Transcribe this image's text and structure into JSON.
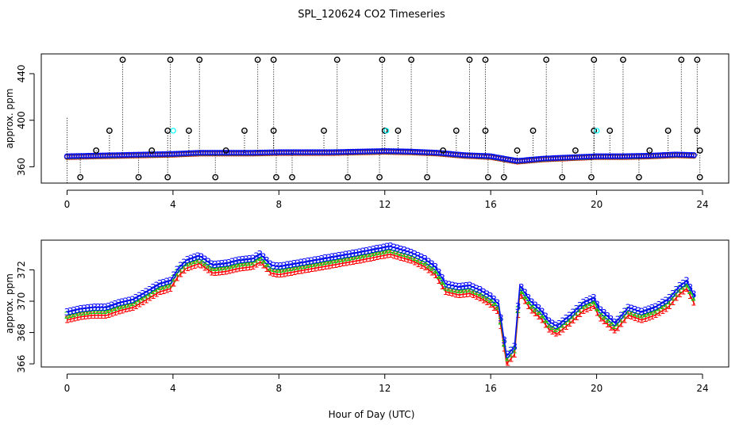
{
  "figure": {
    "title": "SPL_120624  CO2 Timeseries",
    "xlabel": "Hour of Day (UTC)"
  },
  "colors": {
    "series_1": "#ff0000",
    "series_2": "#00cd00",
    "series_3": "#0000ff",
    "cyan": "#00ffff",
    "outlier": "#000000",
    "axis": "#000000"
  },
  "chart_data": [
    {
      "type": "scatter",
      "title": "",
      "xlabel": "",
      "ylabel": "approx. ppm",
      "xlim": [
        -1,
        25
      ],
      "ylim": [
        346,
        457
      ],
      "xticks": [
        "0",
        "4",
        "8",
        "12",
        "16",
        "20",
        "24"
      ],
      "yticks": [
        "360",
        "400",
        "440"
      ],
      "marker": "circle",
      "notes": "Dotted vertical lines connect spike markers to the series",
      "baseline": {
        "x": [
          0,
          1,
          2,
          3,
          4,
          5,
          6,
          7,
          8,
          9,
          10,
          11,
          12,
          13,
          14,
          15,
          16,
          17,
          18,
          19,
          20,
          21,
          22,
          23,
          23.7
        ],
        "y": [
          369,
          369.5,
          370,
          370.5,
          371,
          372,
          372,
          372,
          372.5,
          372.5,
          372.5,
          373,
          373.5,
          373,
          372,
          370,
          369,
          365,
          367,
          368,
          369,
          369,
          369.5,
          370.5,
          370
        ]
      },
      "spikes_high": {
        "x": [
          2.1,
          3.9,
          5.0,
          7.2,
          7.8,
          10.2,
          11.9,
          13.0,
          15.2,
          15.8,
          18.1,
          19.9,
          21.0,
          23.2,
          23.8
        ],
        "y": 452
      },
      "spikes_mid": {
        "x": [
          1.6,
          3.8,
          4.6,
          6.7,
          7.8,
          9.7,
          12.0,
          12.5,
          14.7,
          15.8,
          17.6,
          19.9,
          20.5,
          22.7,
          23.8
        ],
        "y": 391
      },
      "spikes_low": {
        "x": [
          0.5,
          2.7,
          3.8,
          5.6,
          7.9,
          8.5,
          10.6,
          11.8,
          13.6,
          15.9,
          16.5,
          18.7,
          19.8,
          21.6,
          23.9
        ],
        "y": 351
      },
      "spikes_near": {
        "x": [
          1.1,
          3.2,
          6.0,
          14.2,
          17.0,
          19.2,
          22.0,
          23.9
        ],
        "y": 374
      }
    },
    {
      "type": "scatter",
      "title": "",
      "xlabel": "Hour of Day (UTC)",
      "ylabel": "approx. ppm",
      "xlim": [
        -1,
        25
      ],
      "ylim": [
        365.8,
        373.9
      ],
      "xticks": [
        "0",
        "4",
        "8",
        "12",
        "16",
        "20",
        "24"
      ],
      "yticks": [
        "366",
        "368",
        "370",
        "372"
      ],
      "marker": "digit",
      "series": [
        {
          "name": "1",
          "offset": -0.5,
          "x": [
            0,
            0.5,
            1,
            1.5,
            2,
            2.5,
            3,
            3.5,
            3.9,
            4.2,
            4.5,
            5,
            5.5,
            6,
            6.5,
            7,
            7.3,
            7.7,
            8,
            9,
            10,
            11,
            11.9,
            12.2,
            12.6,
            13,
            13.5,
            13.9,
            14.3,
            14.8,
            15.2,
            15.6,
            16,
            16.3,
            16.6,
            16.9,
            17.1,
            17.5,
            17.9,
            18.2,
            18.5,
            19,
            19.5,
            19.9,
            20.1,
            20.3,
            20.7,
            21.2,
            21.7,
            22.2,
            22.7,
            23.1,
            23.4,
            23.7
          ],
          "y": [
            369.3,
            369.5,
            369.6,
            369.6,
            369.9,
            370.1,
            370.6,
            371.1,
            371.3,
            372.1,
            372.6,
            372.9,
            372.3,
            372.4,
            372.6,
            372.7,
            373.0,
            372.3,
            372.2,
            372.5,
            372.8,
            373.1,
            373.4,
            373.5,
            373.3,
            373.1,
            372.7,
            372.2,
            371.1,
            370.9,
            371.0,
            370.7,
            370.3,
            369.8,
            366.5,
            367.1,
            371.0,
            370.0,
            369.4,
            368.7,
            368.4,
            369.1,
            369.9,
            370.2,
            369.5,
            369.2,
            368.6,
            369.6,
            369.3,
            369.6,
            370.1,
            370.9,
            371.3,
            370.3
          ]
        },
        {
          "name": "2",
          "offset": -0.2,
          "x": [
            0,
            0.5,
            1,
            1.5,
            2,
            2.5,
            3,
            3.5,
            3.9,
            4.2,
            4.5,
            5,
            5.5,
            6,
            6.5,
            7,
            7.3,
            7.7,
            8,
            9,
            10,
            11,
            11.9,
            12.2,
            12.6,
            13,
            13.5,
            13.9,
            14.3,
            14.8,
            15.2,
            15.6,
            16,
            16.3,
            16.6,
            16.9,
            17.1,
            17.5,
            17.9,
            18.2,
            18.5,
            19,
            19.5,
            19.9,
            20.1,
            20.3,
            20.7,
            21.2,
            21.7,
            22.2,
            22.7,
            23.1,
            23.4,
            23.7
          ],
          "y": [
            369.3,
            369.5,
            369.6,
            369.6,
            369.9,
            370.1,
            370.6,
            371.1,
            371.3,
            372.1,
            372.6,
            372.9,
            372.3,
            372.4,
            372.6,
            372.7,
            373.0,
            372.3,
            372.2,
            372.5,
            372.8,
            373.1,
            373.4,
            373.5,
            373.3,
            373.1,
            372.7,
            372.2,
            371.1,
            370.9,
            371.0,
            370.7,
            370.3,
            369.8,
            366.5,
            367.1,
            371.0,
            370.0,
            369.4,
            368.7,
            368.4,
            369.1,
            369.9,
            370.2,
            369.5,
            369.2,
            368.6,
            369.6,
            369.3,
            369.6,
            370.1,
            370.9,
            371.3,
            370.3
          ]
        },
        {
          "name": "3",
          "offset": 0,
          "x": [
            0,
            0.5,
            1,
            1.5,
            2,
            2.5,
            3,
            3.5,
            3.9,
            4.2,
            4.5,
            5,
            5.5,
            6,
            6.5,
            7,
            7.3,
            7.7,
            8,
            9,
            10,
            11,
            11.9,
            12.2,
            12.6,
            13,
            13.5,
            13.9,
            14.3,
            14.8,
            15.2,
            15.6,
            16,
            16.3,
            16.6,
            16.9,
            17.1,
            17.5,
            17.9,
            18.2,
            18.5,
            19,
            19.5,
            19.9,
            20.1,
            20.3,
            20.7,
            21.2,
            21.7,
            22.2,
            22.7,
            23.1,
            23.4,
            23.7
          ],
          "y": [
            369.3,
            369.5,
            369.6,
            369.6,
            369.9,
            370.1,
            370.6,
            371.1,
            371.3,
            372.1,
            372.6,
            372.9,
            372.3,
            372.4,
            372.6,
            372.7,
            373.0,
            372.3,
            372.2,
            372.5,
            372.8,
            373.1,
            373.4,
            373.5,
            373.3,
            373.1,
            372.7,
            372.2,
            371.1,
            370.9,
            371.0,
            370.7,
            370.3,
            369.8,
            366.5,
            367.1,
            371.0,
            370.0,
            369.4,
            368.7,
            368.4,
            369.1,
            369.9,
            370.2,
            369.5,
            369.2,
            368.6,
            369.6,
            369.3,
            369.6,
            370.1,
            370.9,
            371.3,
            370.3
          ]
        }
      ]
    }
  ]
}
